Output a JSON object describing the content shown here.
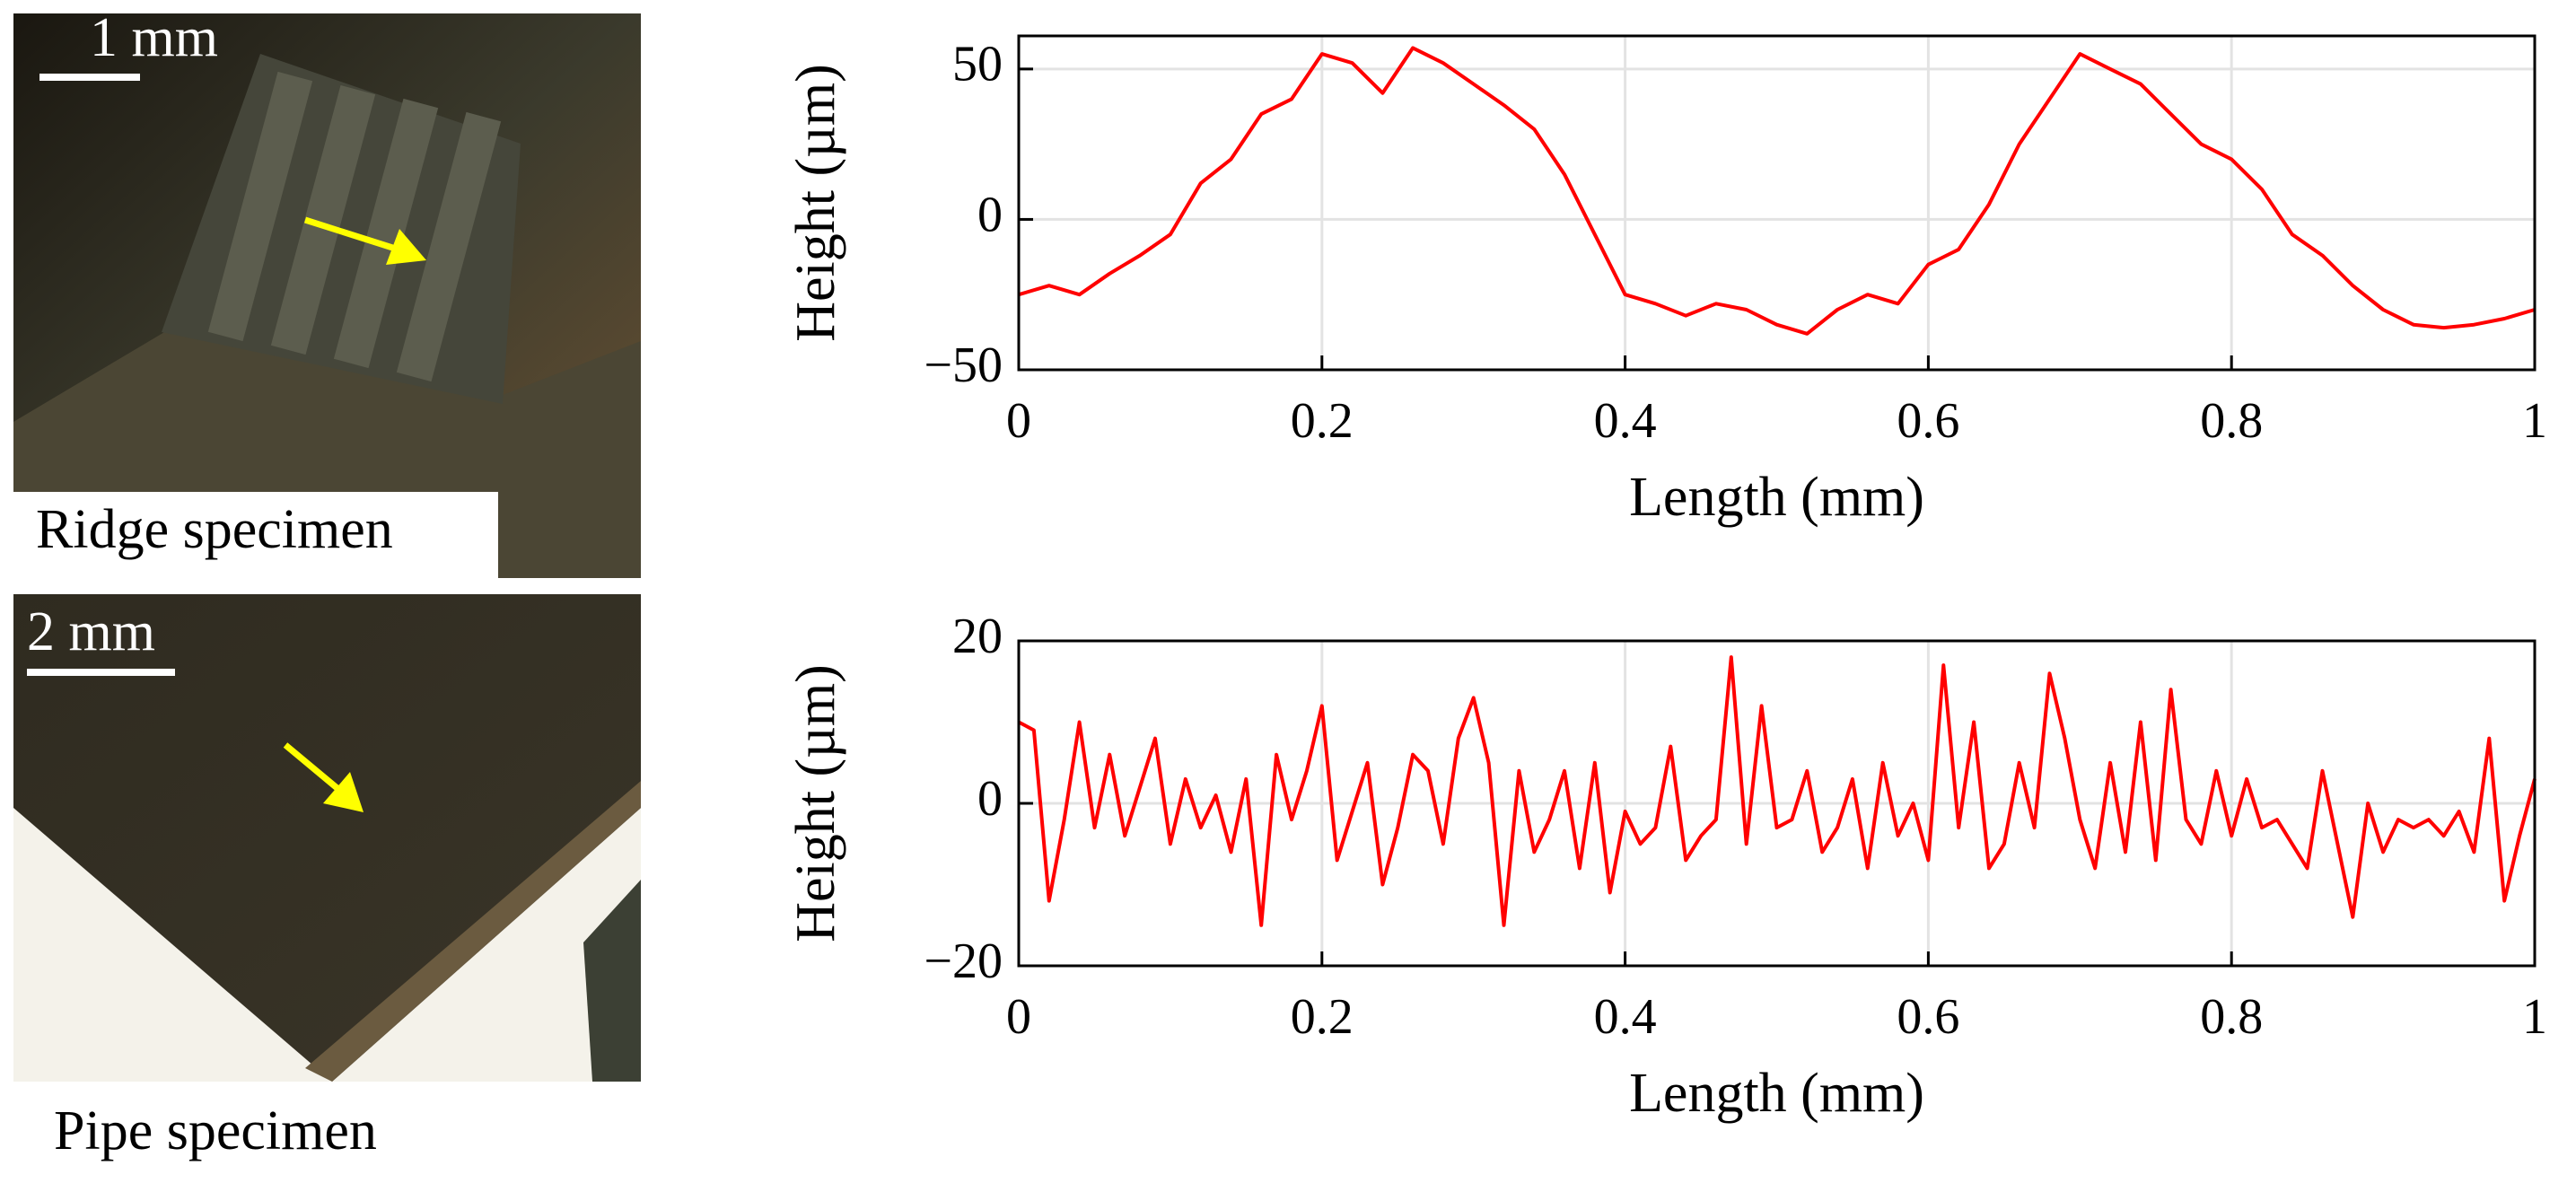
{
  "panels": [
    {
      "scale_label": "1 mm",
      "caption": "Ridge specimen"
    },
    {
      "scale_label": "2 mm",
      "caption": "Pipe specimen"
    }
  ],
  "chart_data": [
    {
      "type": "line",
      "xlabel": "Length (mm)",
      "ylabel": "Height (µm)",
      "color": "#ff0000",
      "grid": true,
      "xlim": [
        0,
        1
      ],
      "xticks": [
        0,
        0.2,
        0.4,
        0.6,
        0.8,
        1
      ],
      "ylim": [
        -50,
        61
      ],
      "yticks": [
        {
          "value": -50,
          "label": "−50"
        },
        0,
        50
      ],
      "x": [
        0,
        0.02,
        0.04,
        0.06,
        0.08,
        0.1,
        0.12,
        0.14,
        0.16,
        0.18,
        0.2,
        0.22,
        0.24,
        0.26,
        0.28,
        0.3,
        0.32,
        0.34,
        0.36,
        0.38,
        0.4,
        0.42,
        0.44,
        0.46,
        0.48,
        0.5,
        0.52,
        0.54,
        0.56,
        0.58,
        0.6,
        0.62,
        0.64,
        0.66,
        0.68,
        0.7,
        0.72,
        0.74,
        0.76,
        0.78,
        0.8,
        0.82,
        0.84,
        0.86,
        0.88,
        0.9,
        0.92,
        0.94,
        0.96,
        0.98,
        1
      ],
      "values": [
        -25,
        -22,
        -25,
        -18,
        -12,
        -5,
        12,
        20,
        35,
        40,
        55,
        52,
        42,
        57,
        52,
        45,
        38,
        30,
        15,
        -5,
        -25,
        -28,
        -32,
        -28,
        -30,
        -35,
        -38,
        -30,
        -25,
        -28,
        -15,
        -10,
        5,
        25,
        40,
        55,
        50,
        45,
        35,
        25,
        20,
        10,
        -5,
        -12,
        -22,
        -30,
        -35,
        -36,
        -35,
        -33,
        -30
      ]
    },
    {
      "type": "line",
      "xlabel": "Length (mm)",
      "ylabel": "Height (µm)",
      "color": "#ff0000",
      "grid": true,
      "xlim": [
        0,
        1
      ],
      "xticks": [
        0,
        0.2,
        0.4,
        0.6,
        0.8,
        1
      ],
      "ylim": [
        -20,
        20
      ],
      "yticks": [
        {
          "value": -20,
          "label": "−20"
        },
        0,
        20
      ],
      "x": [
        0,
        0.01,
        0.02,
        0.03,
        0.04,
        0.05,
        0.06,
        0.07,
        0.08,
        0.09,
        0.1,
        0.11,
        0.12,
        0.13,
        0.14,
        0.15,
        0.16,
        0.17,
        0.18,
        0.19,
        0.2,
        0.21,
        0.22,
        0.23,
        0.24,
        0.25,
        0.26,
        0.27,
        0.28,
        0.29,
        0.3,
        0.31,
        0.32,
        0.33,
        0.34,
        0.35,
        0.36,
        0.37,
        0.38,
        0.39,
        0.4,
        0.41,
        0.42,
        0.43,
        0.44,
        0.45,
        0.46,
        0.47,
        0.48,
        0.49,
        0.5,
        0.51,
        0.52,
        0.53,
        0.54,
        0.55,
        0.56,
        0.57,
        0.58,
        0.59,
        0.6,
        0.61,
        0.62,
        0.63,
        0.64,
        0.65,
        0.66,
        0.67,
        0.68,
        0.69,
        0.7,
        0.71,
        0.72,
        0.73,
        0.74,
        0.75,
        0.76,
        0.77,
        0.78,
        0.79,
        0.8,
        0.81,
        0.82,
        0.83,
        0.84,
        0.85,
        0.86,
        0.87,
        0.88,
        0.89,
        0.9,
        0.91,
        0.92,
        0.93,
        0.94,
        0.95,
        0.96,
        0.97,
        0.98,
        0.99,
        1
      ],
      "values": [
        10,
        9,
        -12,
        -2,
        10,
        -3,
        6,
        -4,
        2,
        8,
        -5,
        3,
        -3,
        1,
        -6,
        3,
        -15,
        6,
        -2,
        4,
        12,
        -7,
        -1,
        5,
        -10,
        -3,
        6,
        4,
        -5,
        8,
        13,
        5,
        -15,
        4,
        -6,
        -2,
        4,
        -8,
        5,
        -11,
        -1,
        -5,
        -3,
        7,
        -7,
        -4,
        -2,
        18,
        -5,
        12,
        -3,
        -2,
        4,
        -6,
        -3,
        3,
        -8,
        5,
        -4,
        0,
        -7,
        17,
        -3,
        10,
        -8,
        -5,
        5,
        -3,
        16,
        8,
        -2,
        -8,
        5,
        -6,
        10,
        -7,
        14,
        -2,
        -5,
        4,
        -4,
        3,
        -3,
        -2,
        -5,
        -8,
        4,
        -5,
        -14,
        0,
        -6,
        -2,
        -3,
        -2,
        -4,
        -1,
        -6,
        8,
        -12,
        -4,
        3
      ]
    }
  ]
}
